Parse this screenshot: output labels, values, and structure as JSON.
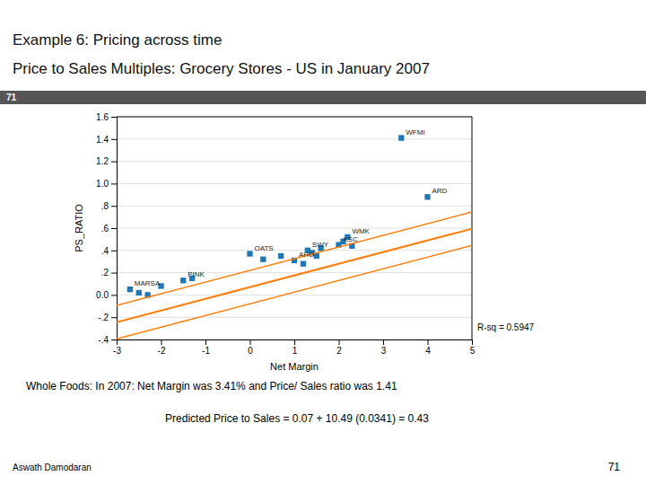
{
  "chart_data": {
    "type": "scatter",
    "title": "Example 6: Pricing across time",
    "subtitle": "Price to Sales Multiples: Grocery Stores - US in January 2007",
    "x_label": "Net Margin",
    "y_label": "PS_RATIO",
    "xlim": [
      -3,
      5
    ],
    "ylim": [
      -0.4,
      1.6
    ],
    "xticks": [
      -3,
      -2,
      -1,
      0,
      1,
      2,
      3,
      4,
      5
    ],
    "yticks": [
      {
        "value": -0.4,
        "label": "-.4"
      },
      {
        "value": -0.2,
        "label": "-.2"
      },
      {
        "value": 0.0,
        "label": "0.0"
      },
      {
        "value": 0.2,
        "label": ".2"
      },
      {
        "value": 0.4,
        "label": ".4"
      },
      {
        "value": 0.6,
        "label": ".6"
      },
      {
        "value": 0.8,
        "label": ".8"
      },
      {
        "value": 1.0,
        "label": "1.0"
      },
      1.2,
      1.4,
      1.6
    ],
    "grid": true,
    "series": [
      {
        "type": "scatter",
        "marker": "square",
        "x": [
          -2.7,
          -2.5,
          -2.3,
          -2.0,
          -1.5,
          -1.3,
          0.0,
          0.3,
          0.7,
          1.0,
          1.2,
          1.3,
          1.4,
          1.5,
          1.6,
          2.0,
          2.1,
          2.2,
          2.3,
          3.41,
          4.0
        ],
        "values": [
          0.05,
          0.02,
          0.0,
          0.08,
          0.13,
          0.15,
          0.37,
          0.32,
          0.35,
          0.31,
          0.28,
          0.4,
          0.38,
          0.35,
          0.42,
          0.45,
          0.48,
          0.52,
          0.44,
          1.41,
          0.88
        ],
        "labels": [
          "MARSA",
          null,
          null,
          null,
          "PINK",
          null,
          "OATS",
          null,
          null,
          "AHO",
          null,
          "SWY",
          null,
          null,
          null,
          "KSC",
          null,
          "WMK",
          null,
          "WFMI",
          "ARD"
        ]
      },
      {
        "type": "line",
        "x": [
          -3,
          5
        ],
        "values": [
          -0.2447,
          0.5945
        ]
      },
      {
        "type": "line",
        "x": [
          -3,
          5
        ],
        "values": [
          -0.0947,
          0.7445
        ]
      },
      {
        "type": "line",
        "x": [
          -3,
          5
        ],
        "values": [
          -0.3947,
          0.4445
        ]
      }
    ],
    "annotations": [
      "71",
      "R-sq = 0.5947",
      "Whole Foods: In 2007: Net Margin was 3.41% and Price/ Sales ratio was 1.41",
      "Predicted Price to Sales = 0.07 + 10.49 (0.0341) = 0.43",
      "Aswath Damodaran",
      "71"
    ]
  }
}
